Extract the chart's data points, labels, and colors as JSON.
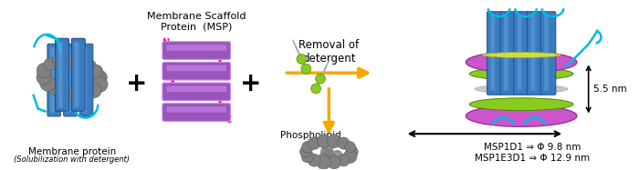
{
  "fig_width": 7.0,
  "fig_height": 1.87,
  "dpi": 100,
  "bg_color": "#ffffff",
  "label_membrane_protein": "Membrane protein",
  "label_membrane_protein_sub": "(Solubilization with detergent)",
  "label_msp": "Membrane Scaffold\nProtein  (MSP)",
  "label_phospholipid": "Phospholipid",
  "label_removal": "Removal of\ndetergent",
  "label_5nm": "5.5 nm",
  "label_msp1d1": "MSP1D1 ⇒ Φ 9.8 nm",
  "label_msp1e3d1": "MSP1E3D1 ⇒ Φ 12.9 nm",
  "blue_helix": "#3a7abf",
  "blue_helix_light": "#6aaade",
  "blue_helix_dark": "#1a4a80",
  "msp_body": "#9955bb",
  "msp_body_light": "#cc88ee",
  "msp_connect": "#ee1188",
  "lipid_green": "#88cc22",
  "lipid_dark": "#558800",
  "detergent_color": "#808080",
  "detergent_dark": "#505050",
  "cyan_line": "#00bbdd",
  "purple_belt": "#993399",
  "purple_belt_light": "#cc55cc",
  "orange_arrow": "#f5a800",
  "nanodisc_inner": "#dddddd"
}
